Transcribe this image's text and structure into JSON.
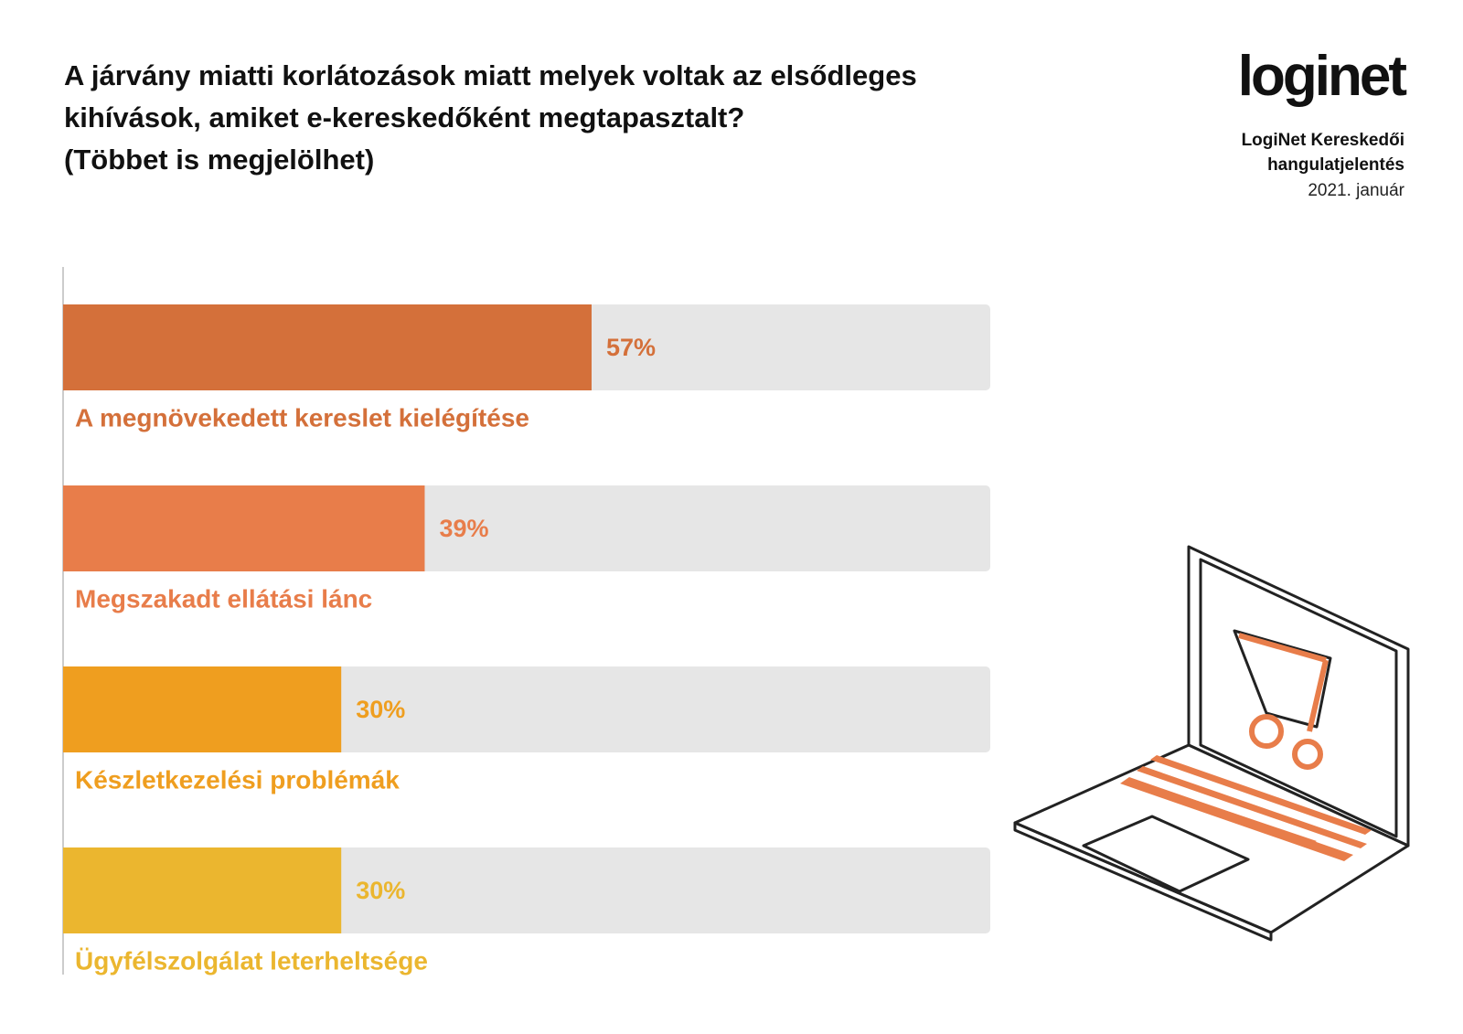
{
  "chart_data": {
    "type": "bar",
    "orientation": "horizontal",
    "title": "A járvány miatti korlátozások miatt melyek voltak az elsődleges kihívások, amiket e-kereskedőként megtapasztalt?",
    "subtitle": "(Többet is megjelölhet)",
    "brand": "loginet",
    "report": "LogiNet Kereskedői hangulatjelentés",
    "date": "2021. január",
    "categories": [
      "A megnövekedett kereslet kielégítése",
      "Megszakadt ellátási lánc",
      "Készletkezelési problémák",
      "Ügyfélszolgálat leterheltsége"
    ],
    "values": [
      57,
      39,
      30,
      30
    ],
    "value_labels": [
      "57%",
      "39%",
      "30%",
      "30%"
    ],
    "colors": [
      "#d4703a",
      "#e87d4a",
      "#ef9e1f",
      "#ebb62f"
    ],
    "track_color": "#e6e6e6",
    "xlim": [
      0,
      100
    ]
  }
}
